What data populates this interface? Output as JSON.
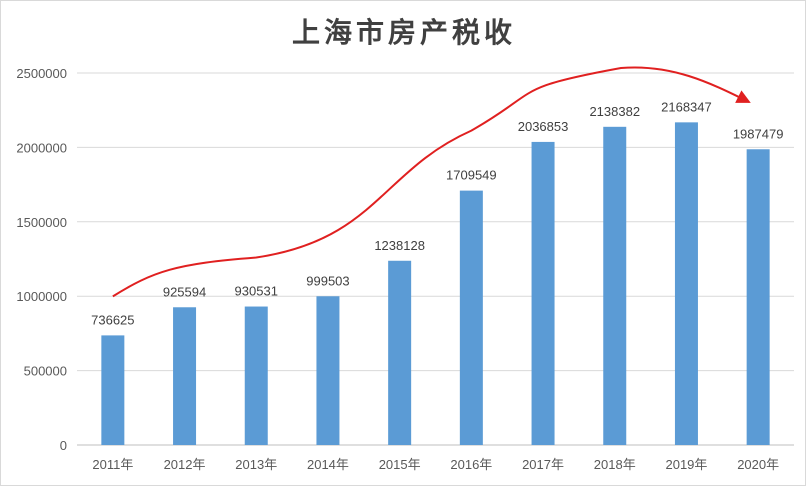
{
  "chart_data": {
    "type": "bar",
    "title": "上海市房产税收",
    "categories": [
      "2011年",
      "2012年",
      "2013年",
      "2014年",
      "2015年",
      "2016年",
      "2017年",
      "2018年",
      "2019年",
      "2020年"
    ],
    "values": [
      736625,
      925594,
      930531,
      999503,
      1238128,
      1709549,
      2036853,
      2138382,
      2168347,
      1987479
    ],
    "ylim": [
      0,
      2500000
    ],
    "yticks": [
      0,
      500000,
      1000000,
      1500000,
      2000000,
      2500000
    ],
    "xlabel": "",
    "ylabel": "",
    "grid": true,
    "legend": "none",
    "data_labels": true,
    "bar_color": "#5b9bd5",
    "trend_arrow_color": "#e02020"
  }
}
